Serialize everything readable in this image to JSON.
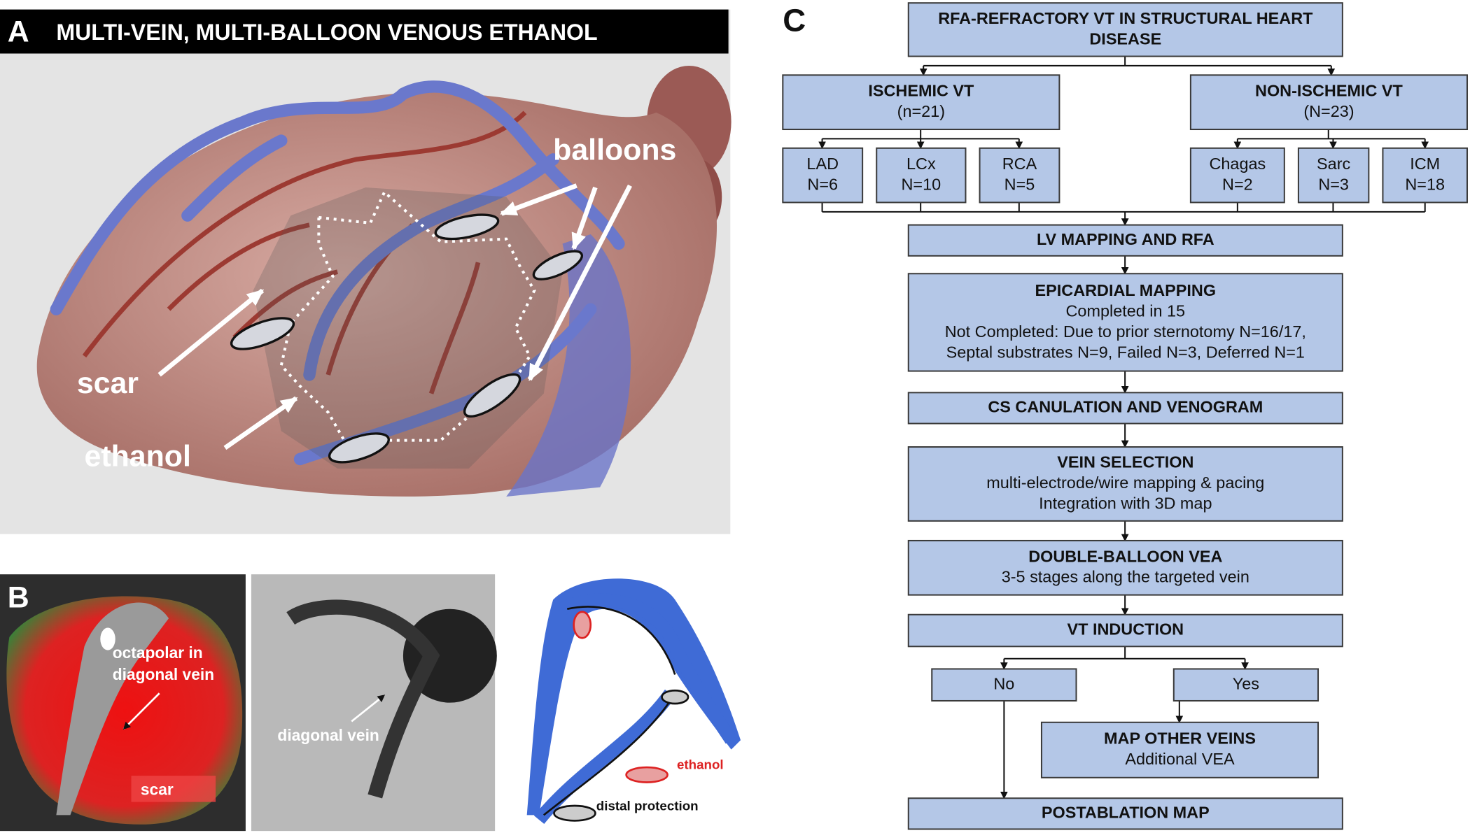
{
  "panel_a": {
    "label": "A",
    "title": "MULTI-VEIN, MULTI-BALLOON VENOUS ETHANOL",
    "annotations": [
      "balloons",
      "scar",
      "ethanol"
    ]
  },
  "panel_b": {
    "label": "B",
    "map_labels": [
      "octapolar in",
      "diagonal vein"
    ],
    "map_scar": "scar",
    "fluoro_label": "diagonal vein",
    "legend": [
      "ethanol",
      "distal protection"
    ]
  },
  "panel_c": {
    "label": "C",
    "nodes": [
      {
        "heading": [
          "RFA-REFRACTORY VT IN STRUCTURAL HEART",
          "DISEASE"
        ],
        "text": []
      },
      {
        "heading": [
          "ISCHEMIC VT"
        ],
        "text": [
          "(n=21)"
        ]
      },
      {
        "heading": [
          "NON-ISCHEMIC VT"
        ],
        "text": [
          "(N=23)"
        ]
      },
      {
        "heading": [],
        "text": [
          "LAD",
          "N=6"
        ]
      },
      {
        "heading": [],
        "text": [
          "LCx",
          "N=10"
        ]
      },
      {
        "heading": [],
        "text": [
          "RCA",
          "N=5"
        ]
      },
      {
        "heading": [],
        "text": [
          "Chagas",
          "N=2"
        ]
      },
      {
        "heading": [],
        "text": [
          "Sarc",
          "N=3"
        ]
      },
      {
        "heading": [],
        "text": [
          "ICM",
          "N=18"
        ]
      },
      {
        "heading": [
          "LV MAPPING AND RFA"
        ],
        "text": []
      },
      {
        "heading": [
          "EPICARDIAL MAPPING"
        ],
        "text": [
          "Completed in 15",
          "Not Completed: Due to prior sternotomy N=16/17,",
          "Septal substrates N=9, Failed N=3, Deferred N=1"
        ]
      },
      {
        "heading": [
          "CS CANULATION AND VENOGRAM"
        ],
        "text": []
      },
      {
        "heading": [
          "VEIN SELECTION"
        ],
        "text": [
          "multi-electrode/wire mapping & pacing",
          "Integration with 3D map"
        ]
      },
      {
        "heading": [
          "DOUBLE-BALLOON VEA"
        ],
        "text": [
          "3-5 stages along the targeted vein"
        ]
      },
      {
        "heading": [
          "VT INDUCTION"
        ],
        "text": []
      },
      {
        "heading": [],
        "text": [
          "No"
        ]
      },
      {
        "heading": [],
        "text": [
          "Yes"
        ]
      },
      {
        "heading": [
          "MAP OTHER VEINS"
        ],
        "text": [
          "Additional VEA"
        ]
      },
      {
        "heading": [
          "POSTABLATION MAP"
        ],
        "text": []
      }
    ]
  }
}
